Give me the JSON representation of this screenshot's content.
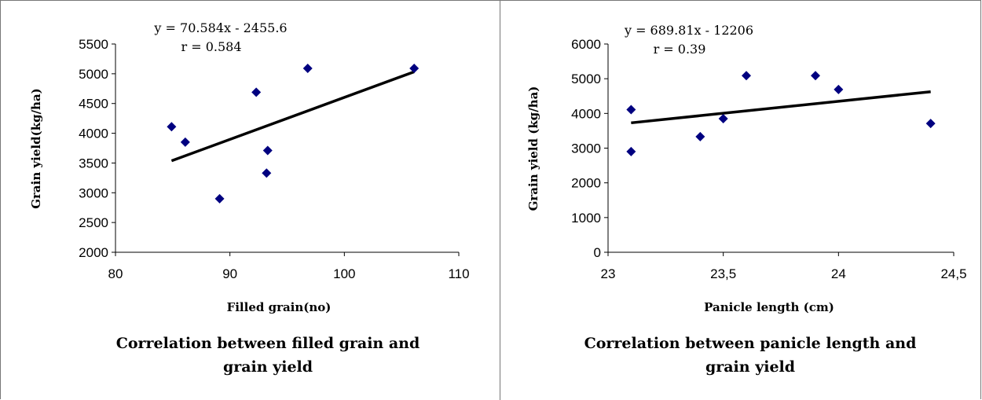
{
  "chart_data": [
    {
      "type": "scatter",
      "title": "",
      "caption": [
        "Correlation between filled grain and",
        "grain yield"
      ],
      "xlabel": "Filled grain(no)",
      "ylabel": "Grain yield(kg/ha)",
      "xlim": [
        80,
        110
      ],
      "ylim": [
        2000,
        5500
      ],
      "xticks": [
        "80",
        "90",
        "100",
        "110"
      ],
      "yticks": [
        "2000",
        "2500",
        "3000",
        "3500",
        "4000",
        "4500",
        "5000",
        "5500"
      ],
      "points": [
        {
          "x": 84.9,
          "y": 4110
        },
        {
          "x": 86.1,
          "y": 3850
        },
        {
          "x": 89.1,
          "y": 2900
        },
        {
          "x": 92.3,
          "y": 4690
        },
        {
          "x": 93.2,
          "y": 3330
        },
        {
          "x": 93.3,
          "y": 3710
        },
        {
          "x": 96.8,
          "y": 5090
        },
        {
          "x": 106.1,
          "y": 5090
        }
      ],
      "trendline": {
        "slope": 70.584,
        "intercept": -2455.6,
        "x_range": [
          84.9,
          106.1
        ]
      },
      "equation": "y = 70.584x - 2455.6",
      "r_label": "r = 0.584",
      "marker_color": "#000080",
      "line_color": "#000000"
    },
    {
      "type": "scatter",
      "title": "",
      "caption": [
        "Correlation between panicle length and",
        "grain yield"
      ],
      "xlabel": "Panicle length (cm)",
      "ylabel": "Grain yield (kg/ha)",
      "xlim": [
        23,
        24.5
      ],
      "ylim": [
        0,
        6000
      ],
      "xticks": [
        "23",
        "23,5",
        "24",
        "24,5"
      ],
      "yticks": [
        "0",
        "1000",
        "2000",
        "3000",
        "4000",
        "5000",
        "6000"
      ],
      "points": [
        {
          "x": 23.1,
          "y": 4110
        },
        {
          "x": 23.1,
          "y": 2900
        },
        {
          "x": 23.4,
          "y": 3330
        },
        {
          "x": 23.5,
          "y": 3850
        },
        {
          "x": 23.6,
          "y": 5090
        },
        {
          "x": 23.9,
          "y": 5090
        },
        {
          "x": 24.0,
          "y": 4690
        },
        {
          "x": 24.4,
          "y": 3710
        }
      ],
      "trendline": {
        "slope": 689.81,
        "intercept": -12206,
        "x_range": [
          23.1,
          24.4
        ]
      },
      "equation": "y = 689.81x - 12206",
      "r_label": "r = 0.39",
      "marker_color": "#000080",
      "line_color": "#000000"
    }
  ]
}
